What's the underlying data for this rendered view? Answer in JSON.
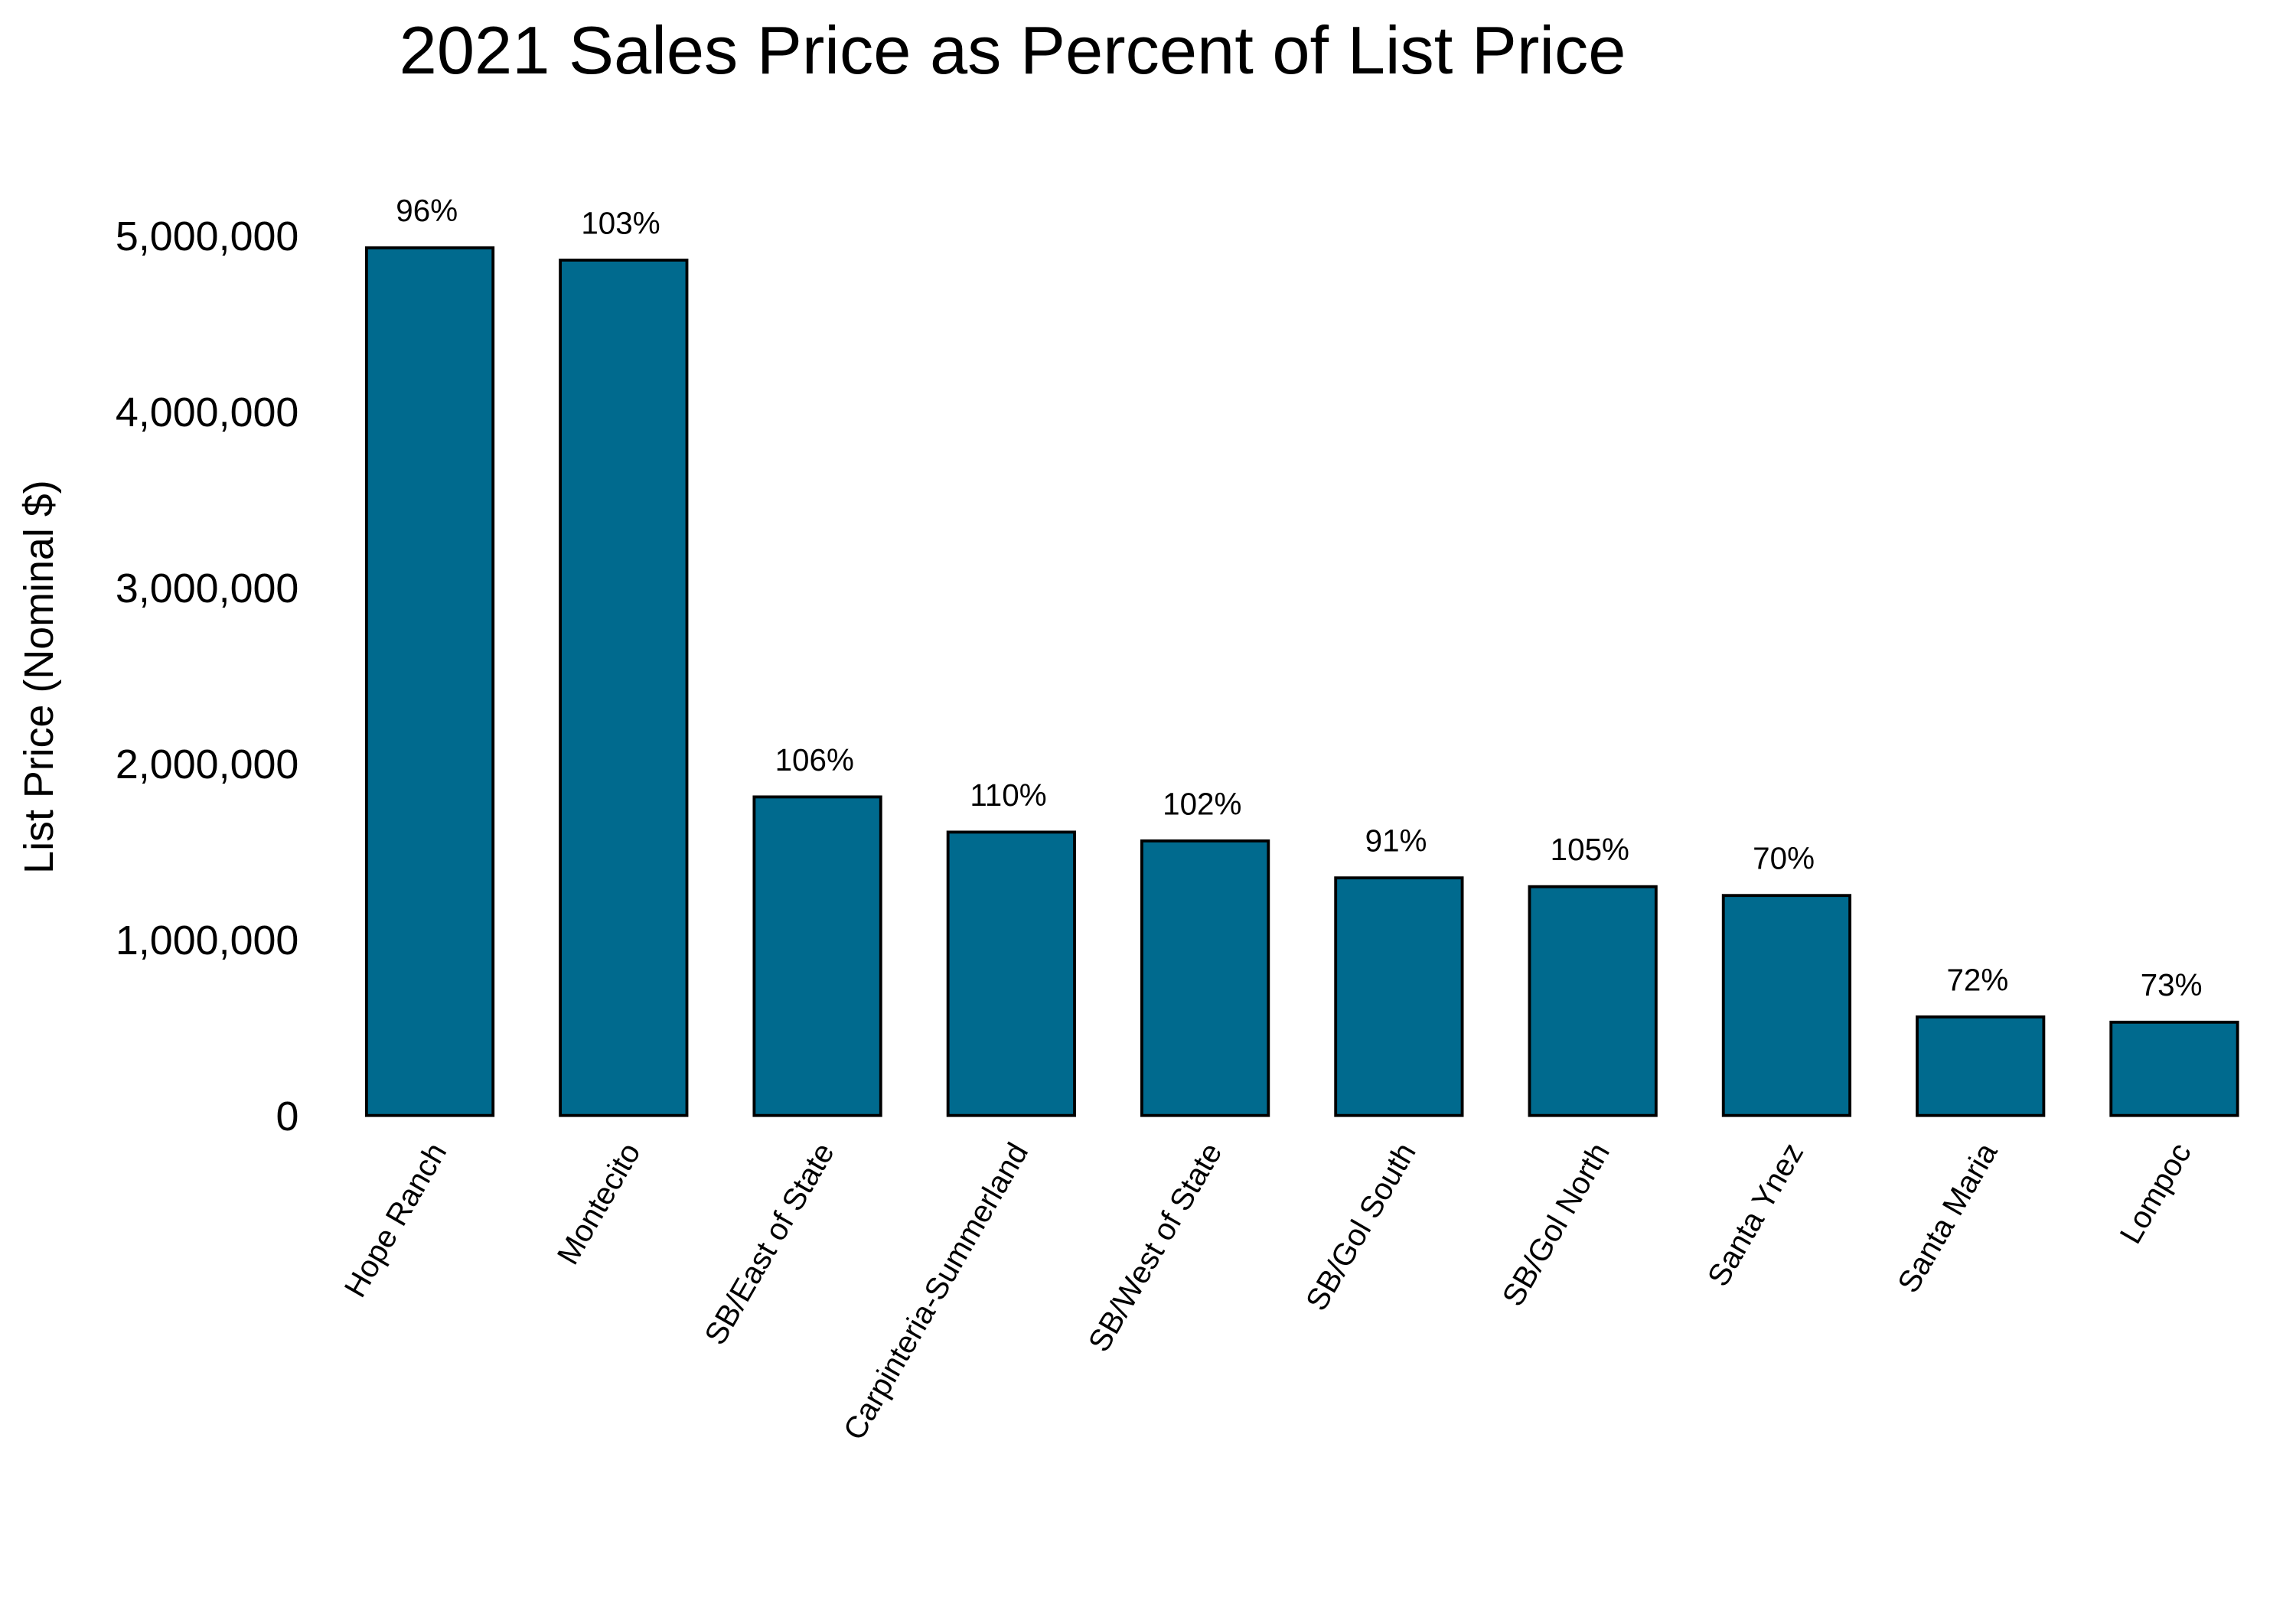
{
  "chart_data": {
    "type": "bar",
    "title": "2021 Sales Price as Percent of List Price",
    "xlabel": "",
    "ylabel": "List Price (Nominal $)",
    "ylim": [
      0,
      5000000
    ],
    "yticks": [
      0,
      1000000,
      2000000,
      3000000,
      4000000,
      5000000
    ],
    "ytick_labels": [
      "0",
      "1,000,000",
      "2,000,000",
      "3,000,000",
      "4,000,000",
      "5,000,000"
    ],
    "grid": false,
    "bar_color": "#006a8e",
    "categories": [
      "Hope Ranch",
      "Montecito",
      "SB/East of State",
      "Carpinteria-Summerland",
      "SB/West of State",
      "SB/Gol South",
      "SB/Gol North",
      "Santa Ynez",
      "Santa Maria",
      "Lompoc"
    ],
    "values": [
      4930000,
      4860000,
      1810000,
      1610000,
      1560000,
      1350000,
      1300000,
      1250000,
      560000,
      530000
    ],
    "data_labels": [
      "96%",
      "103%",
      "106%",
      "110%",
      "102%",
      "91%",
      "105%",
      "70%",
      "72%",
      "73%"
    ]
  }
}
